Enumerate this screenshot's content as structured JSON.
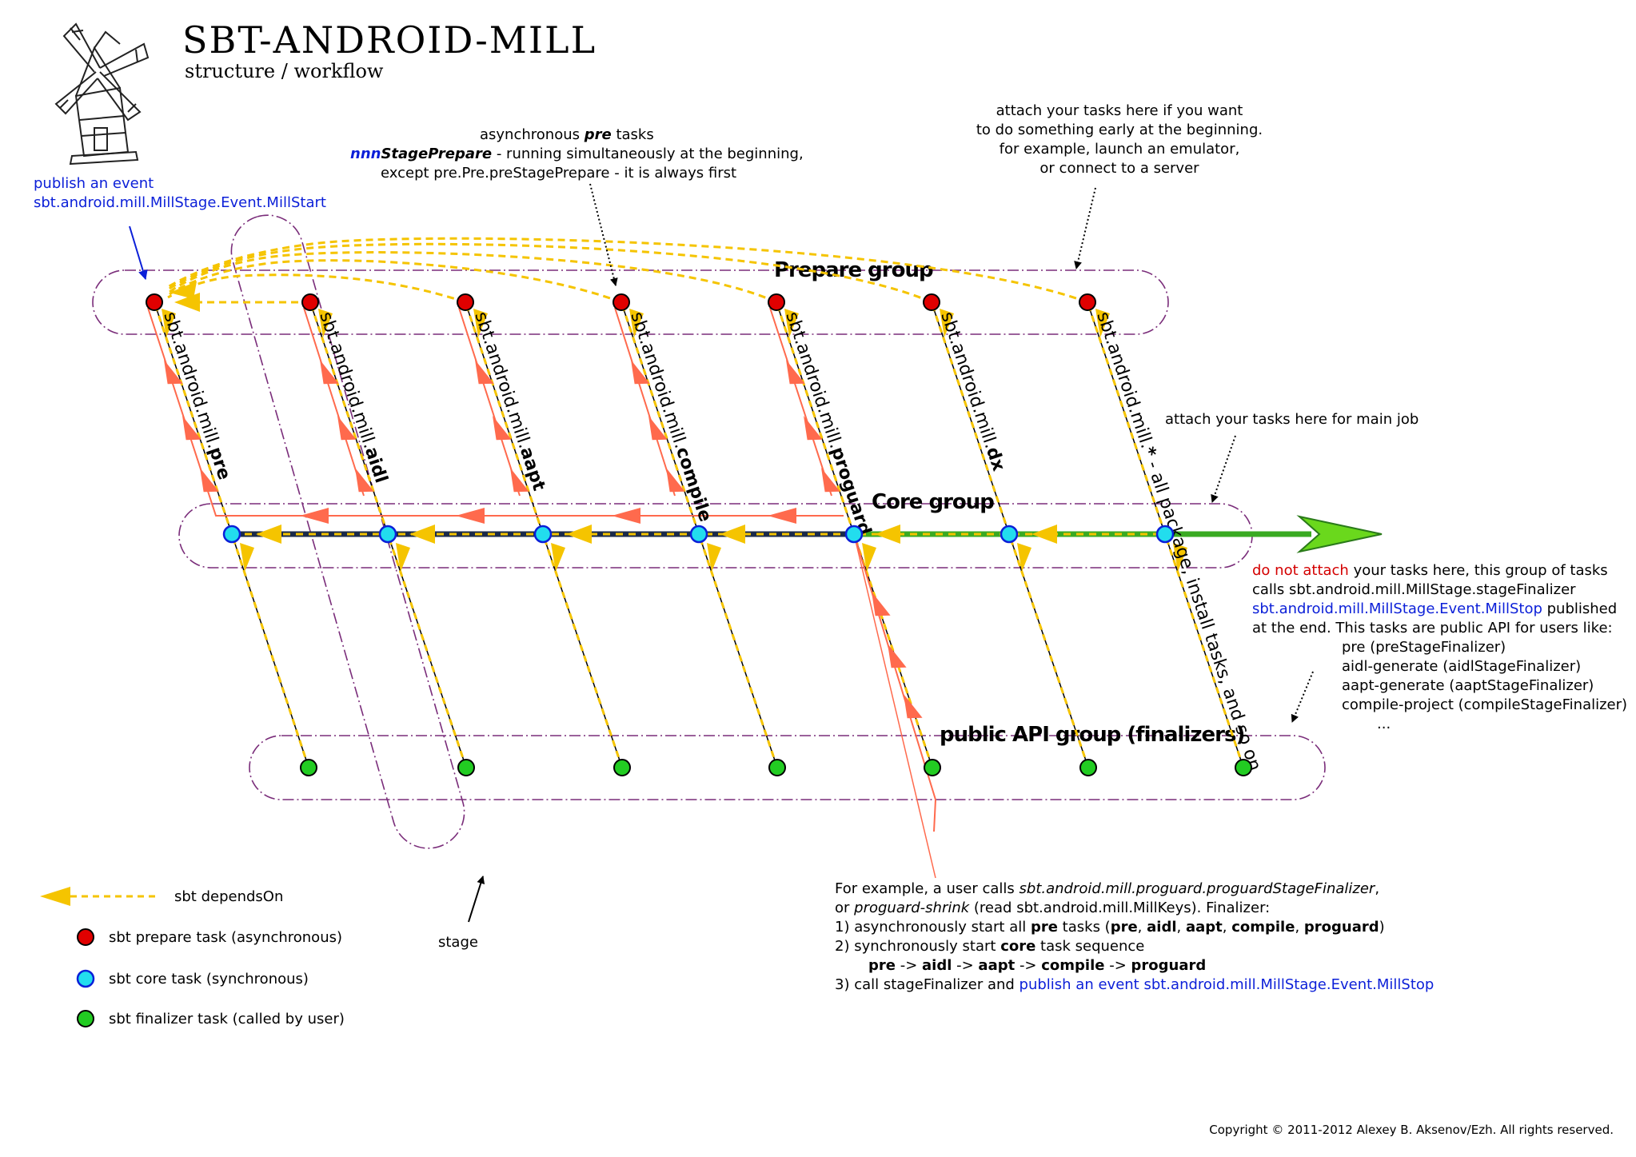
{
  "header": {
    "title": "SBT-ANDROID-MILL",
    "subtitle": "structure / workflow"
  },
  "groups": {
    "prepare": "Prepare group",
    "core": "Core group",
    "finalizers": "public API group (finalizers)"
  },
  "stages": [
    {
      "prefix": "sbt.android.mill.",
      "key": "pre",
      "suffix": ""
    },
    {
      "prefix": "sbt.android.mill.",
      "key": "aidl",
      "suffix": ""
    },
    {
      "prefix": "sbt.android.mill.",
      "key": "aapt",
      "suffix": ""
    },
    {
      "prefix": "sbt.android.mill.",
      "key": "compile",
      "suffix": ""
    },
    {
      "prefix": "sbt.android.mill.",
      "key": "proguard",
      "suffix": ""
    },
    {
      "prefix": "sbt.android.mill.",
      "key": "dx",
      "suffix": ""
    },
    {
      "prefix": "sbt.android.mill.",
      "key": "*",
      "suffix": " - all package, install tasks, and so on"
    }
  ],
  "notes": {
    "publish_start": {
      "line1": "publish an event",
      "line2": "sbt.android.mill.MillStage.Event.MillStart"
    },
    "async_pre": {
      "line1_a": "asynchronous ",
      "line1_b": "pre",
      "line1_c": " tasks",
      "line2_a": "nnn",
      "line2_b": "StagePrepare",
      "line2_c": " - running simultaneously at the beginning,",
      "line3": "except pre.Pre.preStagePrepare - it is always first"
    },
    "attach_early": {
      "line1": "attach your tasks here if you want",
      "line2": "to do something early at the beginning.",
      "line3": "for example, launch an emulator,",
      "line4": "or connect to a server"
    },
    "attach_main": "attach your tasks here for main job",
    "do_not_attach": {
      "line1_red": "do not attach",
      "line1_rest": " your tasks here, this group of tasks",
      "line2": "calls sbt.android.mill.MillStage.stageFinalizer",
      "line3_blue": "sbt.android.mill.MillStage.Event.MillStop",
      "line3_rest": " published",
      "line4": "at the end. This tasks are public API for users like:",
      "items": [
        "pre (preStageFinalizer)",
        "aidl-generate (aidlStageFinalizer)",
        "aapt-generate (aaptStageFinalizer)",
        "compile-project (compileStageFinalizer)",
        "..."
      ]
    },
    "stage": "stage",
    "example": {
      "l1_a": "For example, a user calls ",
      "l1_b": "sbt.android.mill.proguard.proguardStageFinalizer",
      "l1_c": ",",
      "l2_a": "or ",
      "l2_b": "proguard-shrink",
      "l2_c": " (read sbt.android.mill.MillKeys). Finalizer:",
      "l3_a": "1) asynchronously start all ",
      "l3_b": "pre",
      "l3_c": " tasks (",
      "l3_d": "pre",
      "l3_e": ", ",
      "l3_f": "aidl",
      "l3_g": ", ",
      "l3_h": "aapt",
      "l3_i": ", ",
      "l3_j": "compile",
      "l3_k": ", ",
      "l3_l": "proguard",
      "l3_m": ")",
      "l4_a": "2) synchronously start ",
      "l4_b": "core",
      "l4_c": " task sequence",
      "l5_a": "pre",
      "l5_b": " -> ",
      "l5_c": "aidl",
      "l5_d": " -> ",
      "l5_e": "aapt",
      "l5_f": " -> ",
      "l5_g": "compile",
      "l5_h": " -> ",
      "l5_i": "proguard",
      "l6_a": "3) call stageFinalizer and ",
      "l6_b": "publish an event sbt.android.mill.MillStage.Event.MillStop"
    }
  },
  "legend": {
    "depends_on": "sbt dependsOn",
    "prepare_task": "sbt prepare task (asynchronous)",
    "core_task": "sbt core task (synchronous)",
    "finalizer_task": "sbt finalizer task (called by user)"
  },
  "copyright": "Copyright © 2011-2012 Alexey B. Aksenov/Ezh. All rights reserved.",
  "colors": {
    "prepare_node": "#e00000",
    "core_node": "#22ddee",
    "finalizer_node": "#22cc22",
    "depends_on": "#f5c400",
    "flow": "#ff6a4d",
    "group_outline": "#7a2d7a",
    "main_arrow": "#3aaa22",
    "core_line": "#1a2a4a",
    "note_blue": "#0b1fd8",
    "note_red": "#d40000"
  }
}
